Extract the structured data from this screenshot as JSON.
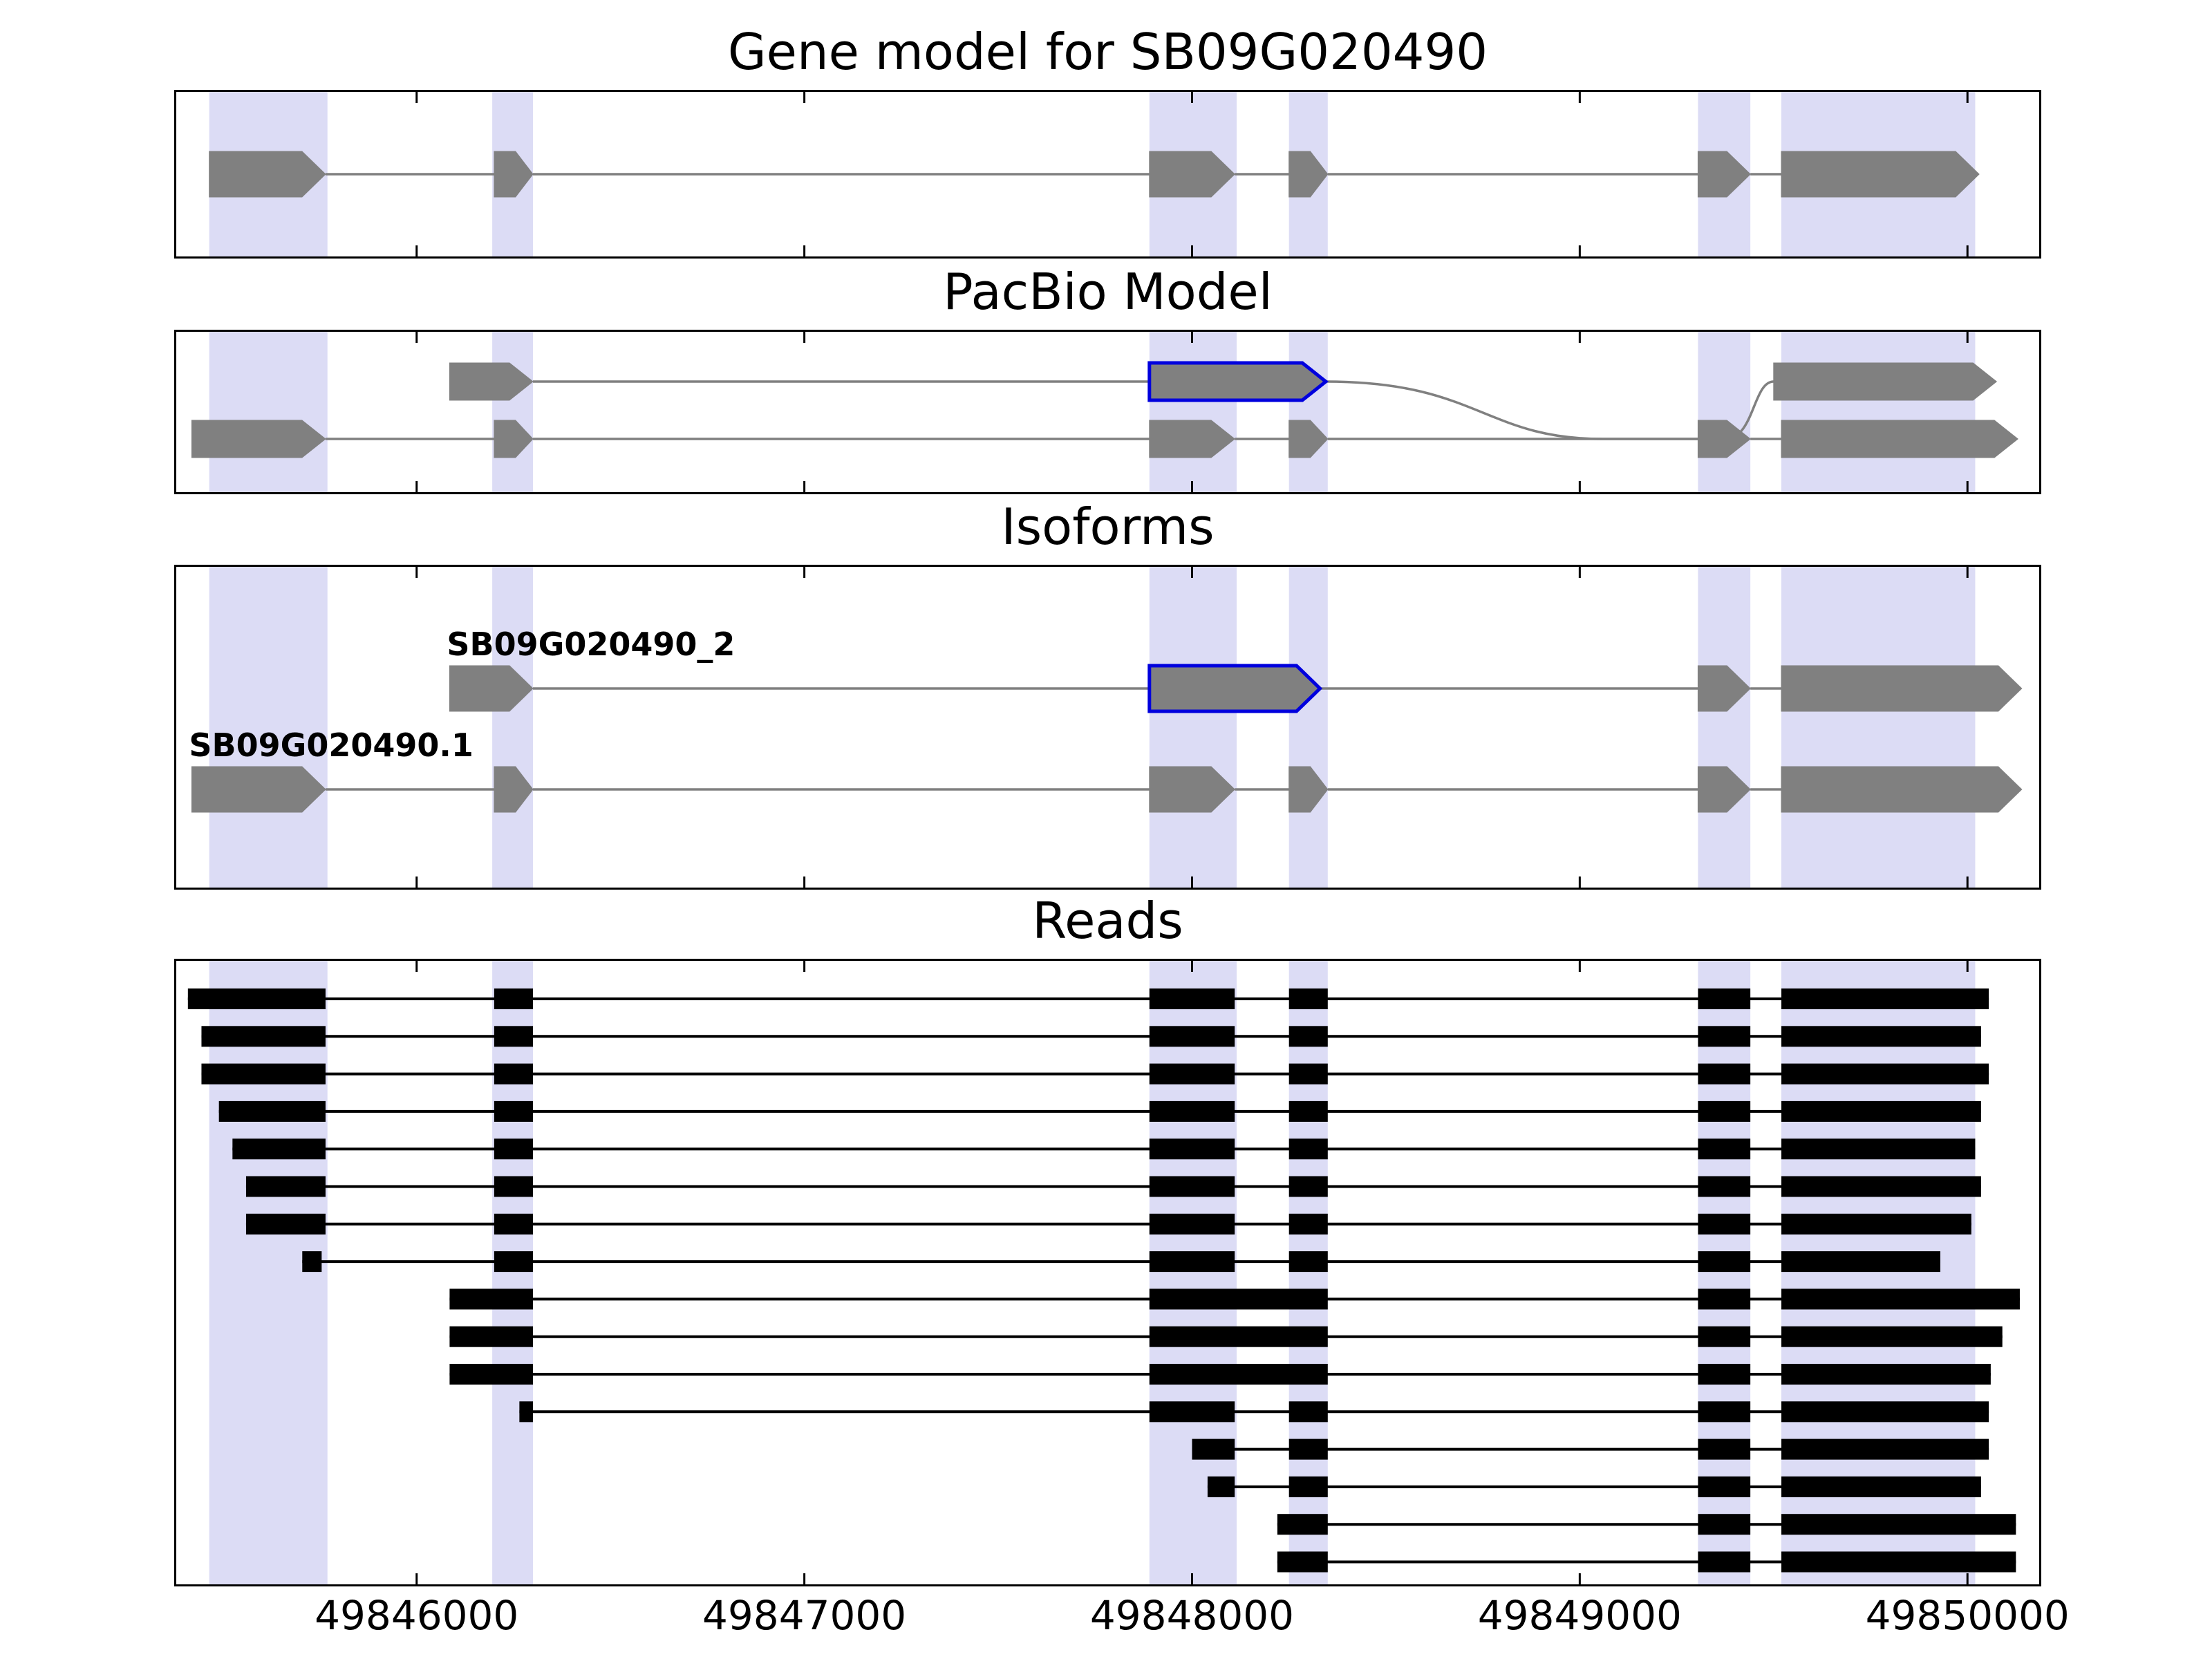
{
  "chart_data": {
    "type": "gene-structure-browser",
    "colors": {
      "background": "#ffffff",
      "frame": "#000000",
      "text": "#000000",
      "exon_fill": "#808080",
      "intron_line": "#808080",
      "highlight_band": "#dcdcf5",
      "selected_edge": "#0000dd",
      "read_fill": "#000000"
    },
    "axis": {
      "xmin": 49845380,
      "xmax": 49850185,
      "ticks": [
        49846000,
        49847000,
        49848000,
        49849000,
        49850000
      ],
      "tick_labels": [
        "49846000",
        "49847000",
        "49848000",
        "49849000",
        "49850000"
      ]
    },
    "highlight_regions": [
      [
        49845465,
        49845770
      ],
      [
        49846195,
        49846300
      ],
      [
        49847890,
        49848115
      ],
      [
        49848250,
        49848350
      ],
      [
        49849305,
        49849440
      ],
      [
        49849520,
        49850020
      ]
    ],
    "panels": [
      {
        "id": "gene_model",
        "title": "Gene model for SB09G020490",
        "rows": [
          {
            "exons": [
              {
                "s": 49845465,
                "e": 49845765
              },
              {
                "s": 49846200,
                "e": 49846300
              },
              {
                "s": 49847890,
                "e": 49848110
              },
              {
                "s": 49848250,
                "e": 49848350
              },
              {
                "s": 49849305,
                "e": 49849440
              },
              {
                "s": 49849520,
                "e": 49850030
              }
            ]
          }
        ]
      },
      {
        "id": "pacbio_model",
        "title": "PacBio Model",
        "rows": [
          {
            "exons": [
              {
                "s": 49846085,
                "e": 49846300
              },
              {
                "s": 49847890,
                "e": 49848345,
                "sel": true
              },
              {
                "s": 49849500,
                "e": 49850075
              }
            ],
            "curve": {
              "from": 49848345,
              "to": 49849500
            }
          },
          {
            "exons": [
              {
                "s": 49845420,
                "e": 49845765
              },
              {
                "s": 49846200,
                "e": 49846300
              },
              {
                "s": 49847890,
                "e": 49848110
              },
              {
                "s": 49848250,
                "e": 49848350
              },
              {
                "s": 49849305,
                "e": 49849440
              },
              {
                "s": 49849520,
                "e": 49850130
              }
            ]
          }
        ]
      },
      {
        "id": "isoforms",
        "title": "Isoforms",
        "rows": [
          {
            "label": "SB09G020490_2",
            "exons": [
              {
                "s": 49846085,
                "e": 49846300
              },
              {
                "s": 49847890,
                "e": 49848330,
                "sel": true
              },
              {
                "s": 49849305,
                "e": 49849440
              },
              {
                "s": 49849520,
                "e": 49850140
              }
            ]
          },
          {
            "label": "SB09G020490.1",
            "exons": [
              {
                "s": 49845420,
                "e": 49845765
              },
              {
                "s": 49846200,
                "e": 49846300
              },
              {
                "s": 49847890,
                "e": 49848110
              },
              {
                "s": 49848250,
                "e": 49848350
              },
              {
                "s": 49849305,
                "e": 49849440
              },
              {
                "s": 49849520,
                "e": 49850140
              }
            ]
          }
        ]
      },
      {
        "id": "reads",
        "title": "Reads",
        "reads": [
          [
            [
              49845410,
              49845765
            ],
            [
              49846200,
              49846300
            ],
            [
              49847890,
              49848110
            ],
            [
              49848250,
              49848350
            ],
            [
              49849305,
              49849440
            ],
            [
              49849520,
              49850055
            ]
          ],
          [
            [
              49845445,
              49845765
            ],
            [
              49846200,
              49846300
            ],
            [
              49847890,
              49848110
            ],
            [
              49848250,
              49848350
            ],
            [
              49849305,
              49849440
            ],
            [
              49849520,
              49850035
            ]
          ],
          [
            [
              49845445,
              49845765
            ],
            [
              49846200,
              49846300
            ],
            [
              49847890,
              49848110
            ],
            [
              49848250,
              49848350
            ],
            [
              49849305,
              49849440
            ],
            [
              49849520,
              49850055
            ]
          ],
          [
            [
              49845490,
              49845765
            ],
            [
              49846200,
              49846300
            ],
            [
              49847890,
              49848110
            ],
            [
              49848250,
              49848350
            ],
            [
              49849305,
              49849440
            ],
            [
              49849520,
              49850035
            ]
          ],
          [
            [
              49845525,
              49845765
            ],
            [
              49846200,
              49846300
            ],
            [
              49847890,
              49848110
            ],
            [
              49848250,
              49848350
            ],
            [
              49849305,
              49849440
            ],
            [
              49849520,
              49850020
            ]
          ],
          [
            [
              49845560,
              49845765
            ],
            [
              49846200,
              49846300
            ],
            [
              49847890,
              49848110
            ],
            [
              49848250,
              49848350
            ],
            [
              49849305,
              49849440
            ],
            [
              49849520,
              49850035
            ]
          ],
          [
            [
              49845560,
              49845765
            ],
            [
              49846200,
              49846300
            ],
            [
              49847890,
              49848110
            ],
            [
              49848250,
              49848350
            ],
            [
              49849305,
              49849440
            ],
            [
              49849520,
              49850010
            ]
          ],
          [
            [
              49845705,
              49845755
            ],
            [
              49846200,
              49846300
            ],
            [
              49847890,
              49848110
            ],
            [
              49848250,
              49848350
            ],
            [
              49849305,
              49849440
            ],
            [
              49849520,
              49849930
            ]
          ],
          [
            [
              49846085,
              49846300
            ],
            [
              49847890,
              49848350
            ],
            [
              49849305,
              49849440
            ],
            [
              49849520,
              49850135
            ]
          ],
          [
            [
              49846085,
              49846300
            ],
            [
              49847890,
              49848350
            ],
            [
              49849305,
              49849440
            ],
            [
              49849520,
              49850090
            ]
          ],
          [
            [
              49846085,
              49846300
            ],
            [
              49847890,
              49848350
            ],
            [
              49849305,
              49849440
            ],
            [
              49849520,
              49850060
            ]
          ],
          [
            [
              49846265,
              49846300
            ],
            [
              49847890,
              49848110
            ],
            [
              49848250,
              49848350
            ],
            [
              49849305,
              49849440
            ],
            [
              49849520,
              49850055
            ]
          ],
          [
            [
              49848000,
              49848110
            ],
            [
              49848250,
              49848350
            ],
            [
              49849305,
              49849440
            ],
            [
              49849520,
              49850055
            ]
          ],
          [
            [
              49848040,
              49848110
            ],
            [
              49848250,
              49848350
            ],
            [
              49849305,
              49849440
            ],
            [
              49849520,
              49850035
            ]
          ],
          [
            [
              49848220,
              49848350
            ],
            [
              49849305,
              49849440
            ],
            [
              49849520,
              49850125
            ]
          ],
          [
            [
              49848220,
              49848350
            ],
            [
              49849305,
              49849440
            ],
            [
              49849520,
              49850125
            ]
          ]
        ]
      }
    ]
  }
}
